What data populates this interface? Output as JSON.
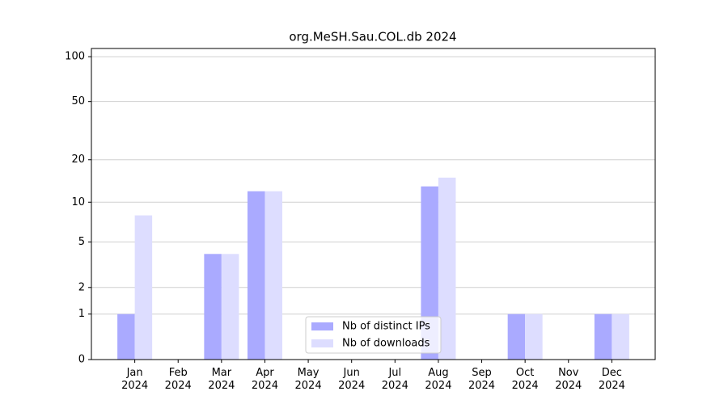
{
  "chart_data": {
    "type": "bar",
    "title": "org.MeSH.Sau.COL.db 2024",
    "categories": [
      "Jan 2024",
      "Feb 2024",
      "Mar 2024",
      "Apr 2024",
      "May 2024",
      "Jun 2024",
      "Jul 2024",
      "Aug 2024",
      "Sep 2024",
      "Oct 2024",
      "Nov 2024",
      "Dec 2024"
    ],
    "series": [
      {
        "name": "Nb of distinct IPs",
        "color": "#aaaaff",
        "values": [
          1,
          0,
          4,
          12,
          0,
          0,
          0,
          13,
          0,
          1,
          0,
          1
        ]
      },
      {
        "name": "Nb of downloads",
        "color": "#ddddff",
        "values": [
          8,
          0,
          4,
          12,
          0,
          0,
          0,
          15,
          0,
          1,
          0,
          1
        ]
      }
    ],
    "yscale": "log1p",
    "ylim": [
      0,
      113.5
    ],
    "yticks": [
      0,
      1,
      2,
      5,
      10,
      20,
      50,
      100
    ],
    "grid": true,
    "legend": "lower center"
  }
}
